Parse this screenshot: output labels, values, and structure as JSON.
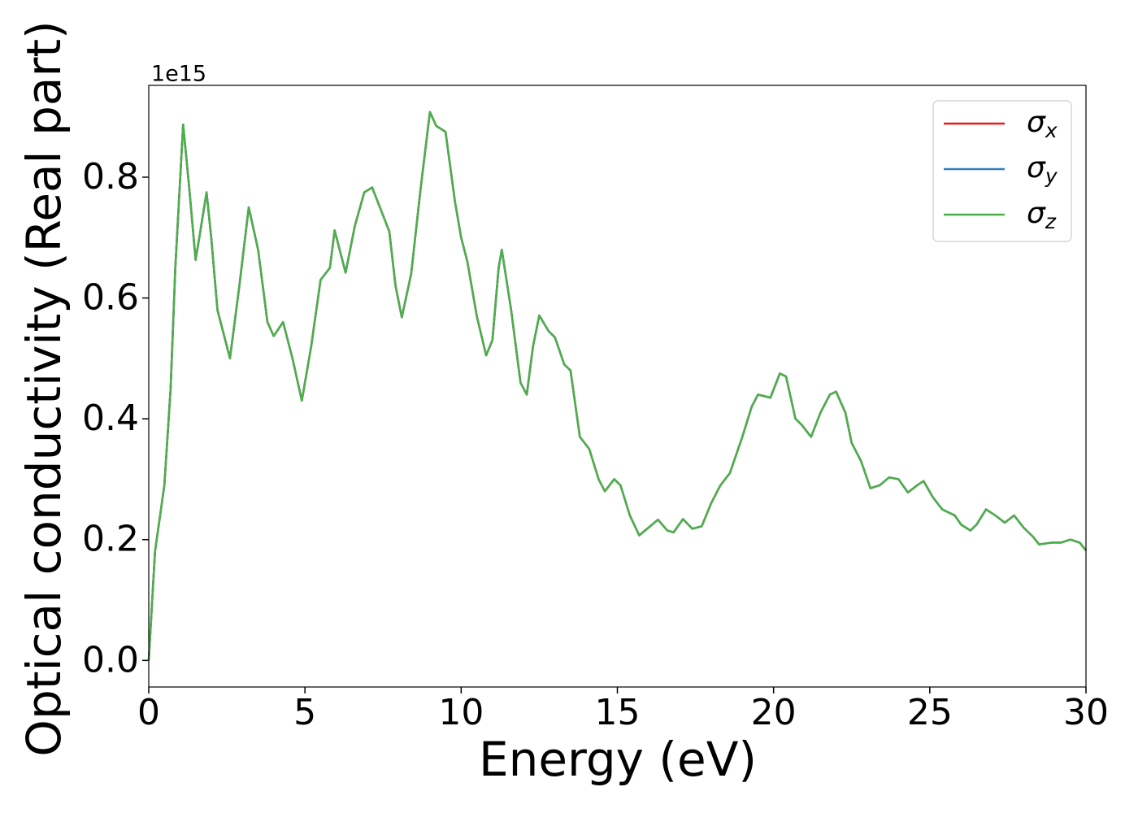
{
  "chart_data": {
    "type": "line",
    "x_label": "Energy (eV)",
    "y_label": "Optical conductivity (Real part)",
    "y_offset_label": "1e15",
    "x": [
      0,
      0.2,
      0.5,
      0.7,
      0.85,
      1.1,
      1.3,
      1.5,
      1.65,
      1.85,
      2.0,
      2.2,
      2.4,
      2.6,
      2.9,
      3.2,
      3.5,
      3.8,
      4.0,
      4.3,
      4.6,
      4.9,
      5.2,
      5.5,
      5.8,
      5.95,
      6.3,
      6.6,
      6.9,
      7.15,
      7.4,
      7.7,
      7.9,
      8.1,
      8.4,
      8.7,
      9.0,
      9.2,
      9.5,
      9.8,
      10.0,
      10.2,
      10.5,
      10.8,
      11.0,
      11.2,
      11.3,
      11.6,
      11.9,
      12.1,
      12.3,
      12.5,
      12.8,
      13.0,
      13.3,
      13.5,
      13.8,
      14.1,
      14.4,
      14.6,
      14.9,
      15.1,
      15.4,
      15.7,
      16.0,
      16.3,
      16.6,
      16.8,
      17.1,
      17.4,
      17.7,
      18.0,
      18.3,
      18.6,
      19.0,
      19.3,
      19.5,
      19.9,
      20.2,
      20.4,
      20.7,
      20.9,
      21.2,
      21.5,
      21.8,
      22.0,
      22.3,
      22.5,
      22.8,
      23.1,
      23.4,
      23.7,
      24.0,
      24.3,
      24.6,
      24.8,
      25.1,
      25.4,
      25.8,
      26.0,
      26.3,
      26.5,
      26.8,
      27.1,
      27.4,
      27.7,
      28.0,
      28.3,
      28.5,
      28.9,
      29.2,
      29.5,
      29.8,
      30.0
    ],
    "series": [
      {
        "name": "σx",
        "color": "#e41a1c",
        "values": [
          0.0,
          0.18,
          0.29,
          0.45,
          0.65,
          0.887,
          0.78,
          0.663,
          0.71,
          0.775,
          0.7,
          0.58,
          0.54,
          0.5,
          0.62,
          0.75,
          0.68,
          0.56,
          0.537,
          0.56,
          0.5,
          0.43,
          0.52,
          0.63,
          0.65,
          0.712,
          0.642,
          0.72,
          0.775,
          0.783,
          0.75,
          0.71,
          0.62,
          0.568,
          0.64,
          0.78,
          0.908,
          0.885,
          0.875,
          0.76,
          0.7,
          0.66,
          0.57,
          0.505,
          0.53,
          0.65,
          0.68,
          0.58,
          0.46,
          0.44,
          0.52,
          0.571,
          0.545,
          0.535,
          0.49,
          0.48,
          0.37,
          0.35,
          0.3,
          0.28,
          0.3,
          0.29,
          0.24,
          0.207,
          0.22,
          0.233,
          0.215,
          0.212,
          0.234,
          0.218,
          0.222,
          0.26,
          0.29,
          0.31,
          0.37,
          0.42,
          0.44,
          0.435,
          0.475,
          0.47,
          0.4,
          0.39,
          0.37,
          0.41,
          0.44,
          0.445,
          0.41,
          0.36,
          0.33,
          0.285,
          0.29,
          0.303,
          0.3,
          0.278,
          0.29,
          0.297,
          0.27,
          0.25,
          0.24,
          0.225,
          0.215,
          0.225,
          0.25,
          0.24,
          0.228,
          0.24,
          0.22,
          0.205,
          0.192,
          0.195,
          0.195,
          0.2,
          0.195,
          0.182
        ]
      },
      {
        "name": "σy",
        "color": "#377eb8",
        "values": [
          0.0,
          0.18,
          0.29,
          0.45,
          0.65,
          0.887,
          0.78,
          0.663,
          0.71,
          0.775,
          0.7,
          0.58,
          0.54,
          0.5,
          0.62,
          0.75,
          0.68,
          0.56,
          0.537,
          0.56,
          0.5,
          0.43,
          0.52,
          0.63,
          0.65,
          0.712,
          0.642,
          0.72,
          0.775,
          0.783,
          0.75,
          0.71,
          0.62,
          0.568,
          0.64,
          0.78,
          0.908,
          0.885,
          0.875,
          0.76,
          0.7,
          0.66,
          0.57,
          0.505,
          0.53,
          0.65,
          0.68,
          0.58,
          0.46,
          0.44,
          0.52,
          0.571,
          0.545,
          0.535,
          0.49,
          0.48,
          0.37,
          0.35,
          0.3,
          0.28,
          0.3,
          0.29,
          0.24,
          0.207,
          0.22,
          0.233,
          0.215,
          0.212,
          0.234,
          0.218,
          0.222,
          0.26,
          0.29,
          0.31,
          0.37,
          0.42,
          0.44,
          0.435,
          0.475,
          0.47,
          0.4,
          0.39,
          0.37,
          0.41,
          0.44,
          0.445,
          0.41,
          0.36,
          0.33,
          0.285,
          0.29,
          0.303,
          0.3,
          0.278,
          0.29,
          0.297,
          0.27,
          0.25,
          0.24,
          0.225,
          0.215,
          0.225,
          0.25,
          0.24,
          0.228,
          0.24,
          0.22,
          0.205,
          0.192,
          0.195,
          0.195,
          0.2,
          0.195,
          0.182
        ]
      },
      {
        "name": "σz",
        "color": "#4daf4a",
        "values": [
          0.0,
          0.18,
          0.29,
          0.45,
          0.65,
          0.887,
          0.78,
          0.663,
          0.71,
          0.775,
          0.7,
          0.58,
          0.54,
          0.5,
          0.62,
          0.75,
          0.68,
          0.56,
          0.537,
          0.56,
          0.5,
          0.43,
          0.52,
          0.63,
          0.65,
          0.712,
          0.642,
          0.72,
          0.775,
          0.783,
          0.75,
          0.71,
          0.62,
          0.568,
          0.64,
          0.78,
          0.908,
          0.885,
          0.875,
          0.76,
          0.7,
          0.66,
          0.57,
          0.505,
          0.53,
          0.65,
          0.68,
          0.58,
          0.46,
          0.44,
          0.52,
          0.571,
          0.545,
          0.535,
          0.49,
          0.48,
          0.37,
          0.35,
          0.3,
          0.28,
          0.3,
          0.29,
          0.24,
          0.207,
          0.22,
          0.233,
          0.215,
          0.212,
          0.234,
          0.218,
          0.222,
          0.26,
          0.29,
          0.31,
          0.37,
          0.42,
          0.44,
          0.435,
          0.475,
          0.47,
          0.4,
          0.39,
          0.37,
          0.41,
          0.44,
          0.445,
          0.41,
          0.36,
          0.33,
          0.285,
          0.29,
          0.303,
          0.3,
          0.278,
          0.29,
          0.297,
          0.27,
          0.25,
          0.24,
          0.225,
          0.215,
          0.225,
          0.25,
          0.24,
          0.228,
          0.24,
          0.22,
          0.205,
          0.192,
          0.195,
          0.195,
          0.2,
          0.195,
          0.182
        ]
      }
    ],
    "xlim": [
      0,
      30
    ],
    "xticks": [
      0,
      5,
      10,
      15,
      20,
      25,
      30
    ],
    "ylim": [
      -0.044,
      0.952
    ],
    "yticks": [
      {
        "value": 0,
        "label": "0.0"
      },
      0.2,
      0.4,
      0.6,
      0.8
    ],
    "legend": "upper right"
  }
}
